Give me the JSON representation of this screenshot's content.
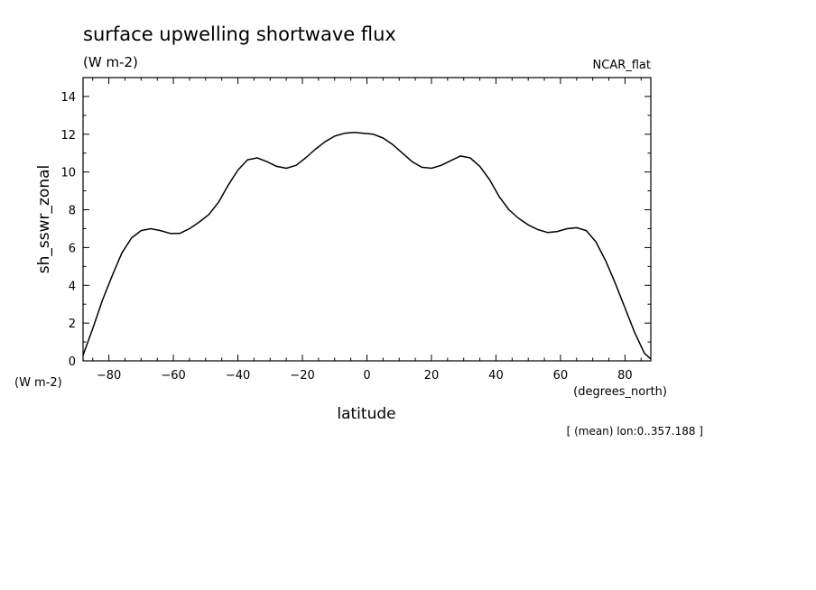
{
  "chart_data": {
    "type": "line",
    "title": "surface upwelling shortwave flux",
    "subtitle": "(W m-2)",
    "dataset_label": "NCAR_flat",
    "xlabel": "latitude",
    "xunits": "(degrees_north)",
    "ylabel": "sh_sswr_zonal",
    "yunits": "(W m-2)",
    "footnote": "[ (mean) lon:0..357.188 ]",
    "xlim": [
      -88,
      88
    ],
    "ylim": [
      0,
      15
    ],
    "xticks": [
      -80,
      -60,
      -40,
      -20,
      0,
      20,
      40,
      60,
      80
    ],
    "yticks": [
      0,
      2,
      4,
      6,
      8,
      10,
      12,
      14
    ],
    "grid": false,
    "series": [
      {
        "x": [
          -88,
          -85,
          -82,
          -79,
          -76,
          -73,
          -70,
          -67,
          -64,
          -61,
          -58,
          -55,
          -52,
          -49,
          -46,
          -43,
          -40,
          -37,
          -34,
          -31,
          -28,
          -25,
          -22,
          -19,
          -16,
          -13,
          -10,
          -7,
          -4,
          -1,
          2,
          5,
          8,
          11,
          14,
          17,
          20,
          23,
          26,
          29,
          32,
          35,
          38,
          41,
          44,
          47,
          50,
          53,
          56,
          59,
          62,
          65,
          68,
          71,
          74,
          77,
          80,
          83,
          86,
          88
        ],
        "y": [
          0.3,
          1.7,
          3.2,
          4.5,
          5.7,
          6.5,
          6.9,
          7.0,
          6.9,
          6.75,
          6.75,
          7.0,
          7.35,
          7.75,
          8.4,
          9.3,
          10.1,
          10.65,
          10.75,
          10.55,
          10.3,
          10.2,
          10.35,
          10.75,
          11.2,
          11.6,
          11.9,
          12.05,
          12.1,
          12.05,
          12.0,
          11.8,
          11.45,
          11.0,
          10.55,
          10.25,
          10.2,
          10.35,
          10.6,
          10.85,
          10.75,
          10.3,
          9.6,
          8.7,
          8.0,
          7.55,
          7.2,
          6.95,
          6.8,
          6.85,
          7.0,
          7.05,
          6.9,
          6.3,
          5.3,
          4.1,
          2.8,
          1.5,
          0.4,
          0.1
        ]
      }
    ]
  }
}
